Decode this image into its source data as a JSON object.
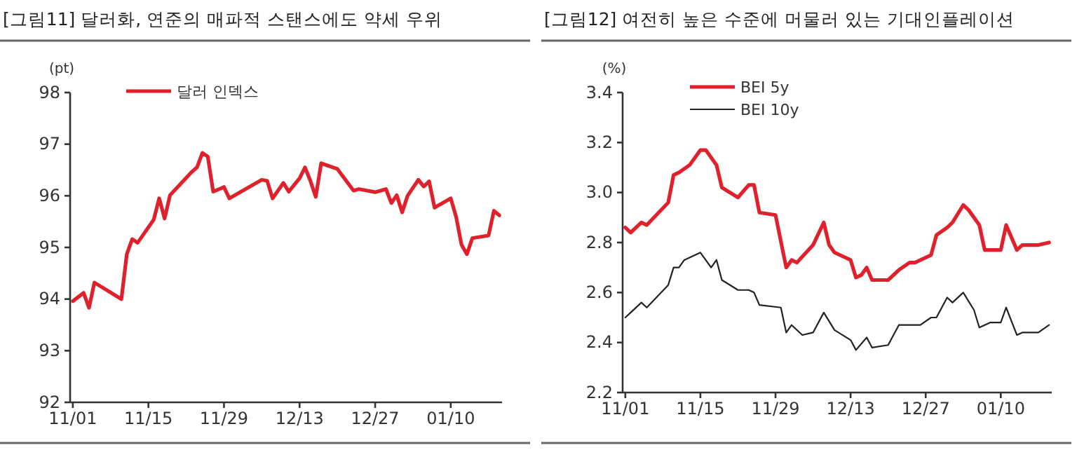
{
  "chart_data": [
    {
      "type": "line",
      "title": "[그림11] 달러화, 연준의 매파적 스탠스에도 약세 우위",
      "ylabel": "(pt)",
      "legend": "top left",
      "ylim": [
        92,
        98
      ],
      "yticks": [
        92,
        93,
        94,
        95,
        96,
        97,
        98
      ],
      "categories": [
        "11/01",
        null,
        null,
        null,
        null,
        null,
        null,
        null,
        null,
        null,
        null,
        null,
        null,
        null,
        "11/15",
        null,
        null,
        null,
        null,
        null,
        null,
        null,
        null,
        null,
        null,
        null,
        null,
        null,
        "11/29",
        null,
        null,
        null,
        null,
        null,
        null,
        null,
        null,
        null,
        null,
        null,
        null,
        null,
        "12/13",
        null,
        null,
        null,
        null,
        null,
        null,
        null,
        null,
        null,
        null,
        null,
        null,
        null,
        "12/27",
        null,
        null,
        null,
        null,
        null,
        null,
        null,
        null,
        null,
        null,
        null,
        null,
        null,
        "01/10",
        null,
        null,
        null,
        null,
        null,
        null,
        null,
        null,
        null
      ],
      "series": [
        {
          "name": "달러 인덱스",
          "color": "#e0202a",
          "values": [
            93.96,
            null,
            94.12,
            93.83,
            94.32,
            null,
            null,
            null,
            null,
            94.0,
            94.87,
            95.16,
            95.09,
            null,
            null,
            95.54,
            95.95,
            95.56,
            96.01,
            null,
            null,
            null,
            96.46,
            96.55,
            96.83,
            96.76,
            96.08,
            null,
            96.17,
            95.95,
            null,
            null,
            null,
            null,
            null,
            96.31,
            96.29,
            95.95,
            null,
            96.25,
            96.08,
            null,
            96.34,
            96.55,
            96.29,
            95.98,
            96.63,
            null,
            null,
            96.52,
            96.38,
            null,
            96.1,
            96.13,
            null,
            null,
            96.07,
            null,
            96.13,
            95.86,
            96.01,
            95.68,
            96.0,
            null,
            96.31,
            96.18,
            96.28,
            95.77,
            null,
            null,
            95.95,
            95.59,
            95.05,
            94.87,
            95.18,
            null,
            null,
            95.23,
            95.71,
            95.62
          ]
        }
      ]
    },
    {
      "type": "line",
      "title": "[그림12] 여전히 높은 수준에 머물러 있는 기대인플레이션",
      "ylabel": "(%)",
      "legend": "top left",
      "ylim": [
        2.2,
        3.4
      ],
      "yticks": [
        2.2,
        2.4,
        2.6,
        2.8,
        {
          "value": 3,
          "label": "3.0"
        },
        3.2,
        3.4
      ],
      "categories": [
        "11/01",
        null,
        null,
        null,
        null,
        null,
        null,
        null,
        null,
        null,
        null,
        null,
        null,
        null,
        "11/15",
        null,
        null,
        null,
        null,
        null,
        null,
        null,
        null,
        null,
        null,
        null,
        null,
        null,
        "11/29",
        null,
        null,
        null,
        null,
        null,
        null,
        null,
        null,
        null,
        null,
        null,
        null,
        null,
        "12/13",
        null,
        null,
        null,
        null,
        null,
        null,
        null,
        null,
        null,
        null,
        null,
        null,
        null,
        "12/27",
        null,
        null,
        null,
        null,
        null,
        null,
        null,
        null,
        null,
        null,
        null,
        null,
        null,
        "01/10",
        null,
        null,
        null,
        null,
        null,
        null,
        null,
        null,
        null
      ],
      "series": [
        {
          "name": "BEI 5y",
          "color": "#e0202a",
          "values": [
            2.86,
            2.84,
            null,
            2.88,
            2.87,
            null,
            null,
            null,
            2.96,
            3.07,
            3.08,
            null,
            3.11,
            null,
            3.17,
            3.17,
            null,
            3.11,
            3.02,
            null,
            null,
            2.98,
            null,
            3.03,
            3.03,
            2.92,
            null,
            null,
            2.91,
            null,
            2.7,
            2.73,
            2.72,
            null,
            null,
            2.79,
            null,
            2.88,
            2.79,
            2.76,
            null,
            null,
            2.73,
            2.66,
            2.67,
            2.7,
            2.65,
            null,
            null,
            2.65,
            null,
            2.69,
            null,
            2.72,
            2.72,
            null,
            null,
            2.75,
            2.83,
            null,
            2.86,
            2.88,
            null,
            2.95,
            2.93,
            null,
            2.87,
            2.77,
            2.77,
            null,
            2.77,
            2.87,
            null,
            2.77,
            2.79,
            null,
            null,
            2.79,
            null,
            2.8
          ]
        },
        {
          "name": "BEI 10y",
          "color": "#222222",
          "values": [
            2.5,
            2.52,
            null,
            2.56,
            2.54,
            null,
            null,
            null,
            2.63,
            2.7,
            2.7,
            2.73,
            null,
            null,
            2.76,
            null,
            2.7,
            2.73,
            2.65,
            null,
            null,
            2.61,
            null,
            2.61,
            2.6,
            2.55,
            null,
            null,
            null,
            2.54,
            2.44,
            2.47,
            null,
            2.43,
            null,
            2.44,
            null,
            2.52,
            null,
            2.45,
            null,
            null,
            2.41,
            2.37,
            null,
            2.42,
            2.38,
            null,
            null,
            2.39,
            null,
            2.47,
            null,
            2.47,
            null,
            2.47,
            null,
            2.5,
            2.5,
            null,
            2.58,
            2.56,
            null,
            2.6,
            null,
            2.53,
            2.46,
            null,
            2.48,
            null,
            2.48,
            2.54,
            null,
            2.43,
            2.44,
            null,
            null,
            2.44,
            null,
            2.47
          ]
        }
      ]
    }
  ]
}
